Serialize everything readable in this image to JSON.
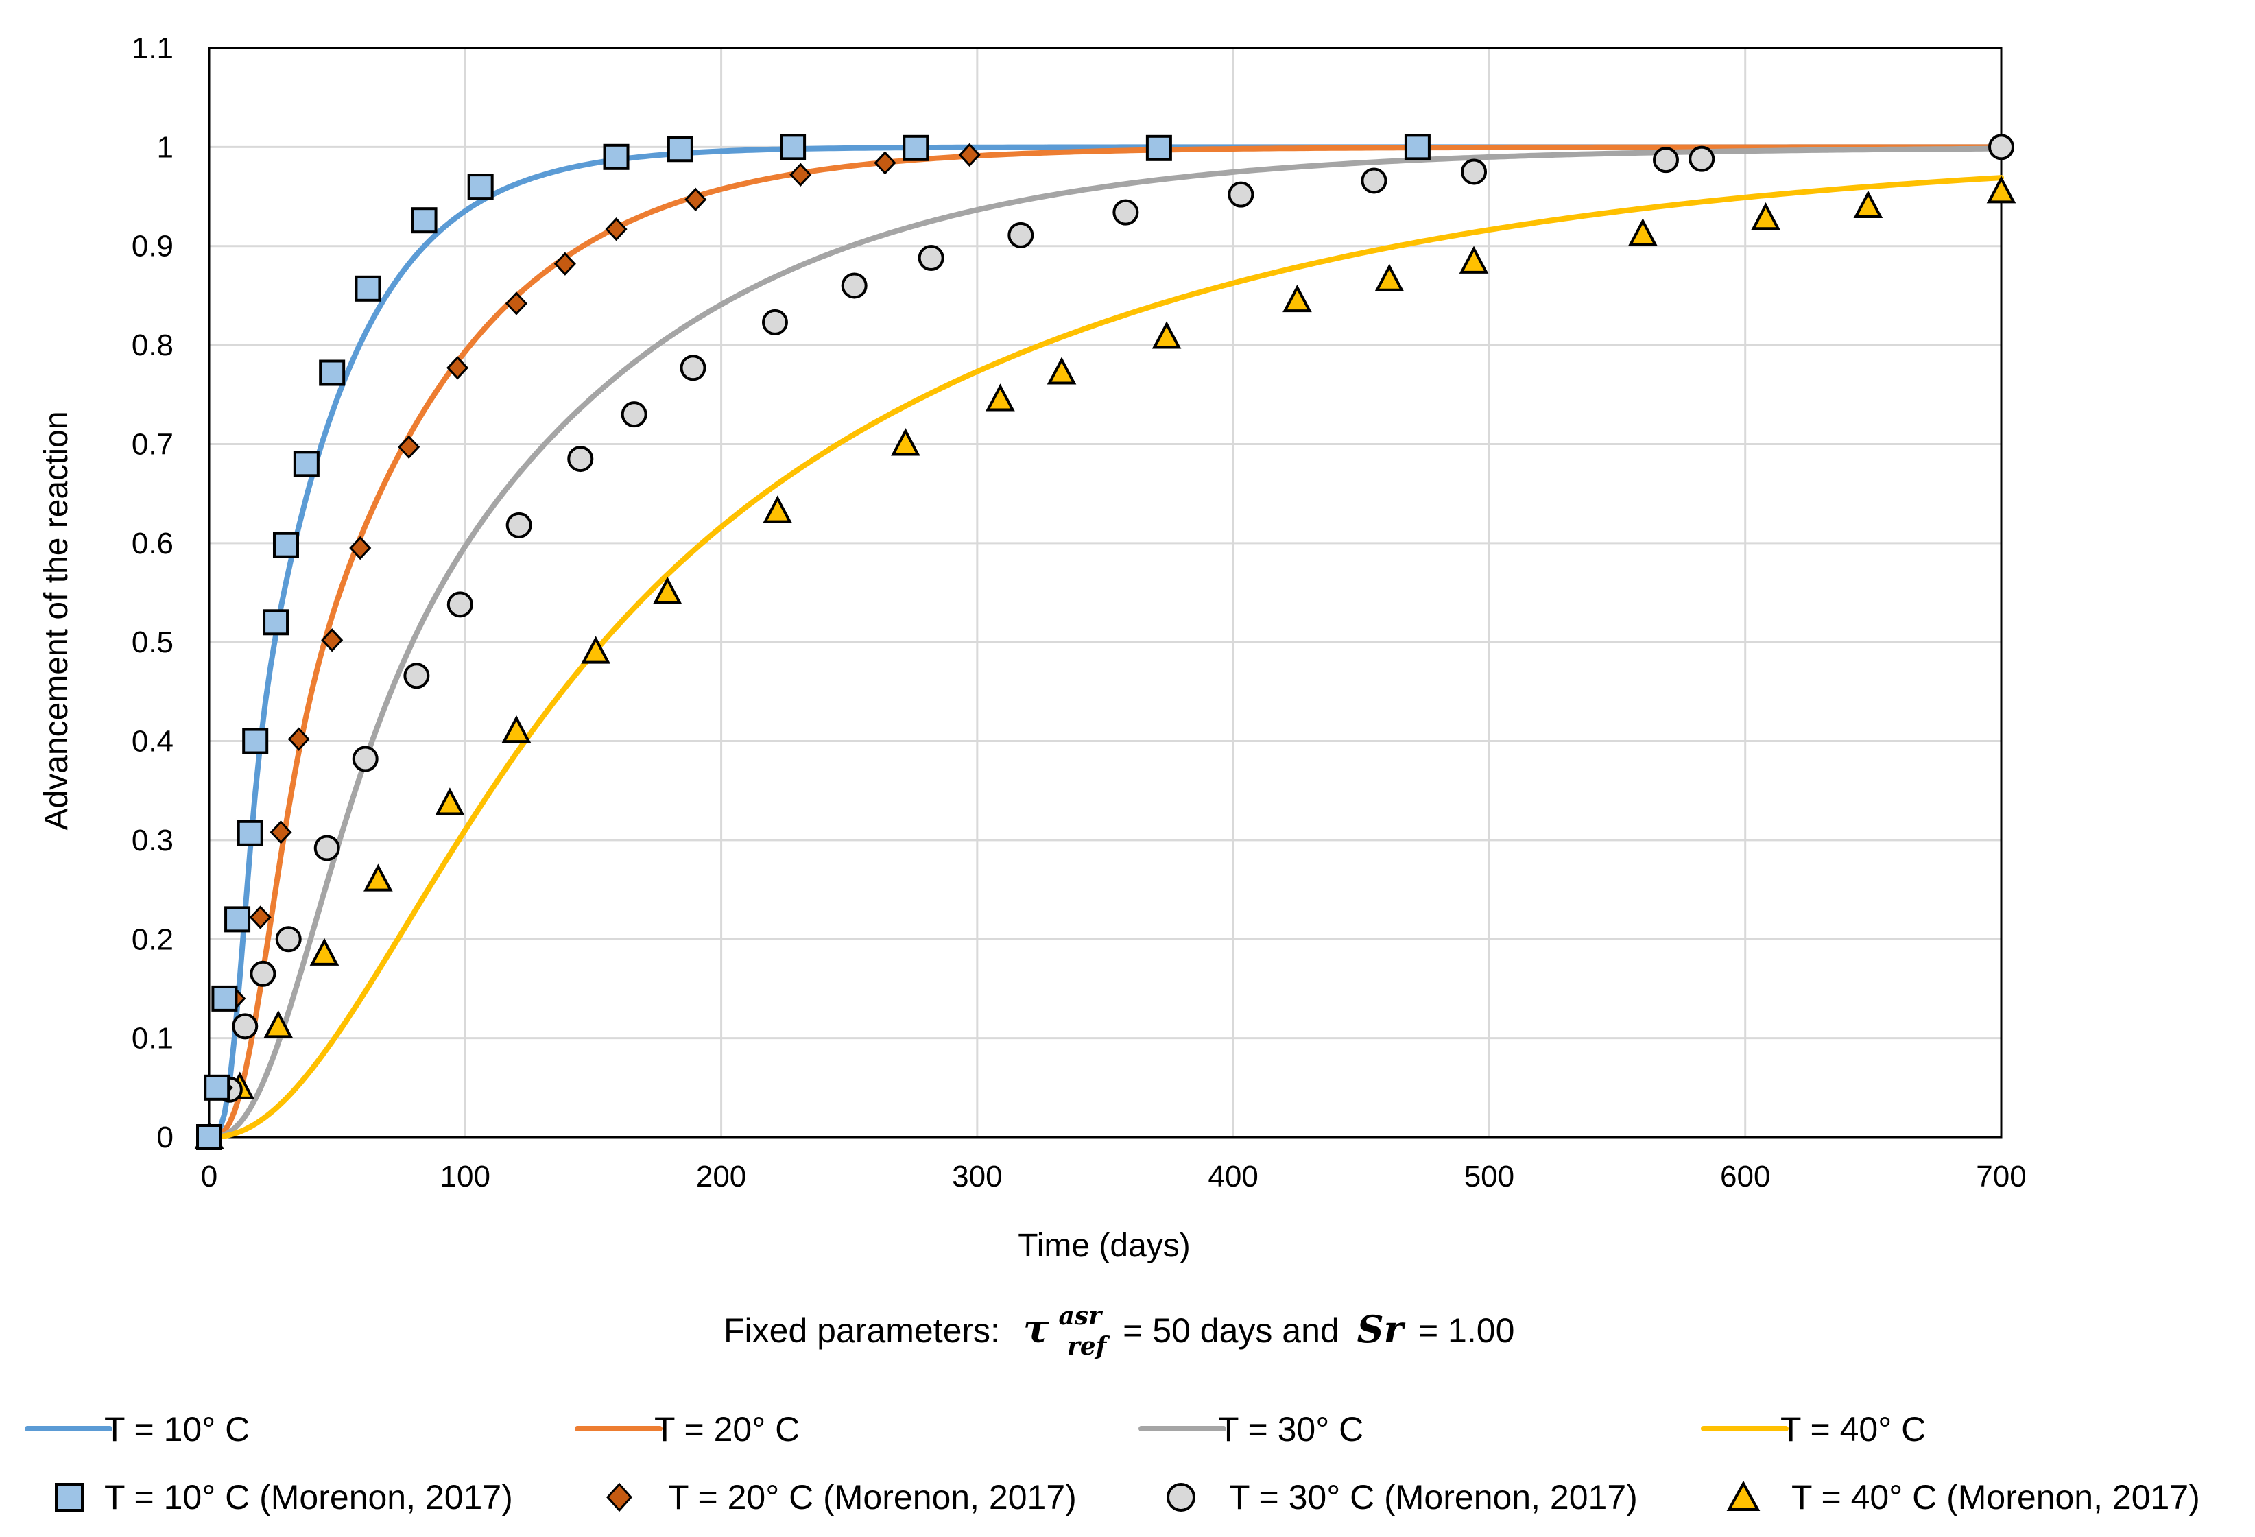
{
  "chart_data": {
    "type": "line",
    "title": "",
    "xlabel": "Time (days)",
    "ylabel": "Advancement of the reaction",
    "xlim": [
      0,
      700
    ],
    "ylim": [
      0,
      1.1
    ],
    "x_ticks": [
      "0",
      "100",
      "200",
      "300",
      "400",
      "500",
      "600",
      "700"
    ],
    "y_ticks": [
      "0",
      "0.1",
      "0.2",
      "0.3",
      "0.4",
      "0.5",
      "0.6",
      "0.7",
      "0.8",
      "0.9",
      "1",
      "1.1"
    ],
    "grid": true,
    "note": {
      "prefix": "Fixed parameters:",
      "tau_symbol": "τ",
      "tau_sup": "asr",
      "tau_sub": "ref",
      "tau_value": "= 50 days and",
      "sr_symbol": "Sr",
      "sr_value": "= 1.00"
    },
    "series": [
      {
        "name": "T = 10° C",
        "kind": "line",
        "color": "#5B9BD5",
        "tau": 36.5,
        "n": 2.35
      },
      {
        "name": "T = 20° C",
        "kind": "line",
        "color": "#ED7D31",
        "tau": 63.4,
        "n": 2.0
      },
      {
        "name": "T = 30° C",
        "kind": "line",
        "color": "#A5A5A5",
        "tau": 108.8,
        "n": 1.65
      },
      {
        "name": "T = 40° C",
        "kind": "line",
        "color": "#FFC000",
        "tau": 201.5,
        "n": 1.3
      },
      {
        "name": "T = 10° C (Morenon, 2017)",
        "kind": "marker",
        "marker": "square",
        "fill": "#9DC3E6",
        "x": [
          0,
          3,
          6,
          11,
          16,
          18,
          26,
          30,
          38,
          48,
          62,
          84,
          106,
          159,
          184,
          228,
          276,
          371,
          472
        ],
        "y": [
          0,
          0.05,
          0.14,
          0.22,
          0.307,
          0.4,
          0.52,
          0.598,
          0.68,
          0.772,
          0.857,
          0.926,
          0.96,
          0.99,
          0.998,
          1.0,
          0.999,
          0.999,
          1.0
        ]
      },
      {
        "name": "T = 20° C (Morenon, 2017)",
        "kind": "marker",
        "marker": "diamond",
        "fill": "#C55A11",
        "x": [
          0,
          5,
          10,
          20,
          28,
          35,
          48,
          59,
          78,
          97,
          120,
          139,
          159,
          190,
          231,
          264,
          297,
          371,
          472
        ],
        "y": [
          0,
          0.05,
          0.14,
          0.222,
          0.308,
          0.402,
          0.502,
          0.595,
          0.697,
          0.777,
          0.842,
          0.882,
          0.917,
          0.947,
          0.972,
          0.984,
          0.992,
          1.0,
          1.0
        ]
      },
      {
        "name": "T = 30° C (Morenon, 2017)",
        "kind": "marker",
        "marker": "circle",
        "fill": "#D9D9D9",
        "x": [
          0,
          8,
          14,
          21,
          31,
          46,
          61,
          81,
          98,
          121,
          145,
          166,
          189,
          221,
          252,
          282,
          317,
          358,
          403,
          455,
          494,
          569,
          583,
          700
        ],
        "y": [
          0,
          0.048,
          0.112,
          0.165,
          0.2,
          0.292,
          0.382,
          0.466,
          0.538,
          0.618,
          0.685,
          0.73,
          0.777,
          0.823,
          0.86,
          0.888,
          0.911,
          0.934,
          0.952,
          0.966,
          0.975,
          0.987,
          0.988,
          1.0
        ]
      },
      {
        "name": "T = 40° C (Morenon, 2017)",
        "kind": "marker",
        "marker": "triangle",
        "fill": "#FFC000",
        "x": [
          0,
          12,
          27,
          45,
          66,
          94,
          120,
          151,
          179,
          222,
          272,
          309,
          333,
          374,
          425,
          461,
          494,
          560,
          608,
          648,
          700
        ],
        "y": [
          0,
          0.05,
          0.112,
          0.185,
          0.26,
          0.337,
          0.41,
          0.49,
          0.55,
          0.632,
          0.7,
          0.745,
          0.772,
          0.808,
          0.845,
          0.866,
          0.884,
          0.912,
          0.928,
          0.94,
          0.955
        ]
      }
    ]
  }
}
